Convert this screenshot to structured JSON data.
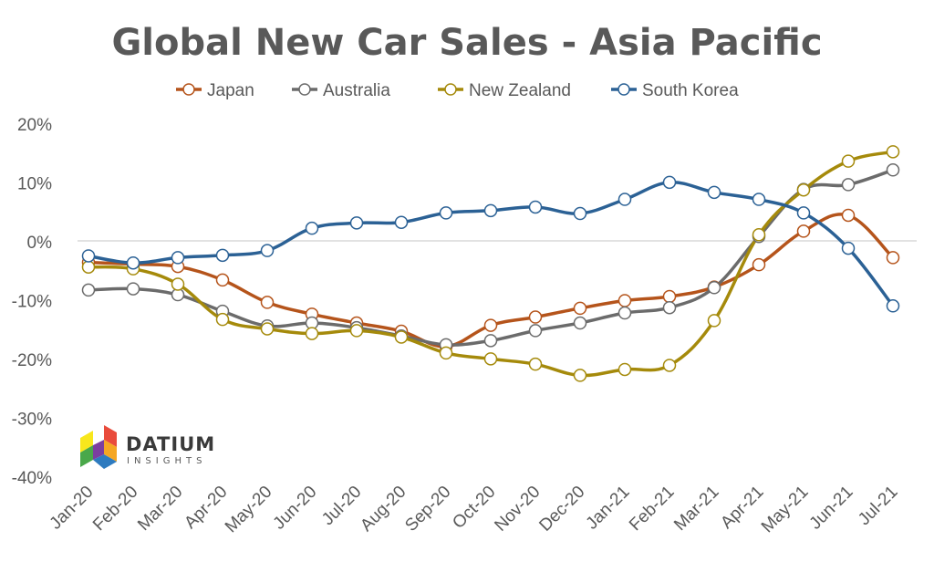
{
  "chart_data": {
    "type": "line",
    "title": "Global New Car Sales - Asia Pacific",
    "xlabel": "",
    "ylabel": "",
    "categories": [
      "Jan-20",
      "Feb-20",
      "Mar-20",
      "Apr-20",
      "May-20",
      "Jun-20",
      "Jul-20",
      "Aug-20",
      "Sep-20",
      "Oct-20",
      "Nov-20",
      "Dec-20",
      "Jan-21",
      "Feb-21",
      "Mar-21",
      "Apr-21",
      "May-21",
      "Jun-21",
      "Jul-21"
    ],
    "ylim": [
      -40,
      20
    ],
    "yticks": [
      20,
      10,
      0,
      -10,
      -20,
      -30,
      -40
    ],
    "ytick_labels": [
      "20%",
      "10%",
      "0%",
      "-10%",
      "-20%",
      "-30%",
      "-40%"
    ],
    "legend_position": "top",
    "grid": false,
    "series": [
      {
        "name": "Japan",
        "color": "#b5541b",
        "values": [
          -3.5,
          -3.8,
          -4.2,
          -6.5,
          -10.3,
          -12.3,
          -13.8,
          -15.2,
          -17.8,
          -14.2,
          -12.8,
          -11.3,
          -10.0,
          -9.3,
          -7.7,
          -3.9,
          1.8,
          4.5,
          -2.7
        ]
      },
      {
        "name": "Australia",
        "color": "#6b6b6b",
        "values": [
          -8.2,
          -8.0,
          -9.0,
          -11.8,
          -14.3,
          -13.8,
          -14.6,
          -16.0,
          -17.5,
          -16.8,
          -15.1,
          -13.8,
          -12.1,
          -11.2,
          -7.8,
          0.9,
          8.9,
          9.7,
          12.2
        ]
      },
      {
        "name": "New Zealand",
        "color": "#a58a0b",
        "values": [
          -4.3,
          -4.6,
          -7.2,
          -13.2,
          -14.8,
          -15.6,
          -15.1,
          -16.2,
          -18.9,
          -19.9,
          -20.8,
          -22.7,
          -21.7,
          -21.0,
          -13.4,
          1.2,
          8.8,
          13.7,
          15.3
        ]
      },
      {
        "name": "South Korea",
        "color": "#2b6195",
        "values": [
          -2.4,
          -3.6,
          -2.7,
          -2.3,
          -1.5,
          2.3,
          3.2,
          3.3,
          4.9,
          5.3,
          5.9,
          4.8,
          7.2,
          10.1,
          8.4,
          7.2,
          4.9,
          -1.1,
          -10.9
        ]
      }
    ]
  },
  "logo": {
    "name": "DATIUM",
    "sub": "INSIGHTS",
    "colors": [
      "#e94b3c",
      "#f5a623",
      "#f8e71c",
      "#4aa84a",
      "#2e7bbf",
      "#7b3fa0"
    ]
  }
}
